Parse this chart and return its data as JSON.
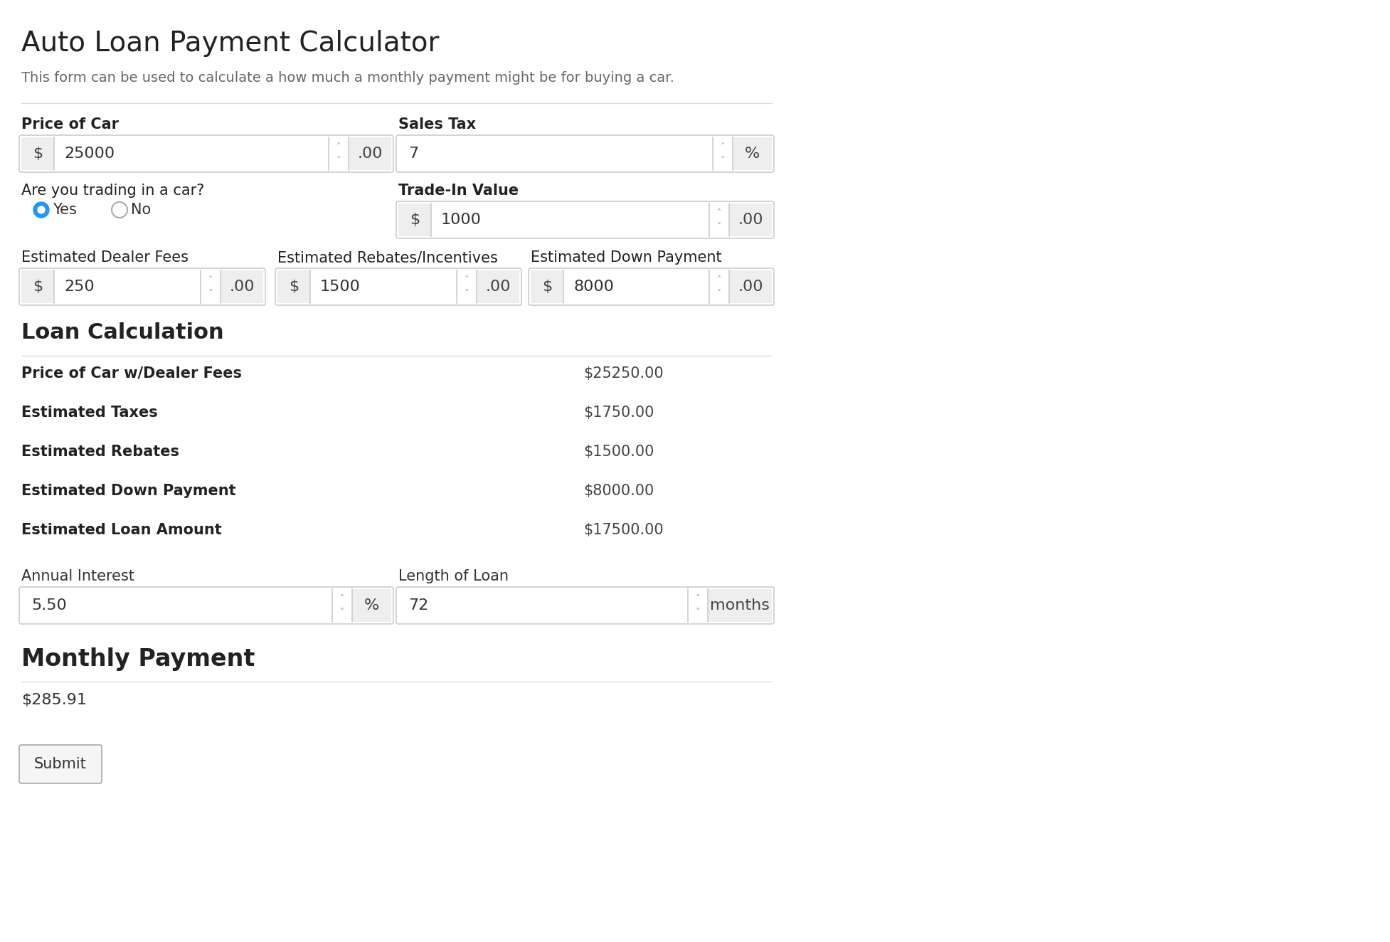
{
  "title": "Auto Loan Payment Calculator",
  "subtitle": "This form can be used to calculate a how much a monthly payment might be for buying a car.",
  "bg_color": "#ffffff",
  "text_color": "#333333",
  "input_bg": "#ffffff",
  "input_border": "#cccccc",
  "prefix_bg": "#eeeeee",
  "divider_color": "#dddddd",
  "spinner_color": "#999999",
  "radio_blue": "#2196F3",
  "fields": {
    "price_of_car_label": "Price of Car",
    "price_of_car_value": "25000",
    "price_of_car_decimal": ".00",
    "price_of_car_prefix": "$",
    "sales_tax_label": "Sales Tax",
    "sales_tax_value": "7",
    "sales_tax_suffix": "%",
    "trade_in_label": "Are you trading in a car?",
    "radio_yes": "Yes",
    "radio_no": "No",
    "trade_in_value_label": "Trade-In Value",
    "trade_in_value": "1000",
    "trade_in_decimal": ".00",
    "trade_in_prefix": "$",
    "dealer_fees_label": "Estimated Dealer Fees",
    "dealer_fees_value": "250",
    "dealer_fees_decimal": ".00",
    "dealer_fees_prefix": "$",
    "rebates_label": "Estimated Rebates/Incentives",
    "rebates_value": "1500",
    "rebates_decimal": ".00",
    "rebates_prefix": "$",
    "down_payment_label": "Estimated Down Payment",
    "down_payment_value": "8000",
    "down_payment_decimal": ".00",
    "down_payment_prefix": "$"
  },
  "loan_calc_title": "Loan Calculation",
  "loan_rows": [
    {
      "label": "Price of Car w/Dealer Fees",
      "value": "$25250.00"
    },
    {
      "label": "Estimated Taxes",
      "value": "$1750.00"
    },
    {
      "label": "Estimated Rebates",
      "value": "$1500.00"
    },
    {
      "label": "Estimated Down Payment",
      "value": "$8000.00"
    },
    {
      "label": "Estimated Loan Amount",
      "value": "$17500.00"
    }
  ],
  "annual_interest_label": "Annual Interest",
  "annual_interest_value": "5.50",
  "annual_interest_suffix": "%",
  "loan_length_label": "Length of Loan",
  "loan_length_value": "72",
  "loan_length_suffix": "months",
  "monthly_payment_title": "Monthly Payment",
  "monthly_payment_value": "$285.91",
  "submit_label": "Submit"
}
